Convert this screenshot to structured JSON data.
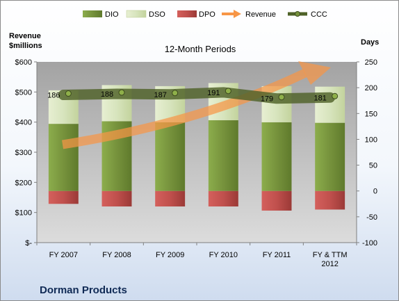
{
  "chart_data": {
    "type": "bar",
    "title": "12-Month Periods",
    "company": "Dorman Products",
    "ylabel_left_line1": "Revenue",
    "ylabel_left_line2": "$millions",
    "ylabel_right": "Days",
    "categories": [
      [
        "FY 2007"
      ],
      [
        "FY 2008"
      ],
      [
        "FY 2009"
      ],
      [
        "FY 2010"
      ],
      [
        "FY 2011"
      ],
      [
        "FY & TTM",
        "2012"
      ]
    ],
    "y_left": {
      "min": 0,
      "max": 600,
      "ticks": [
        "$-",
        "$100",
        "$200",
        "$300",
        "$400",
        "$500",
        "$600"
      ]
    },
    "y_right": {
      "min": -100,
      "max": 250,
      "ticks": [
        "-100",
        "-50",
        "0",
        "50",
        "100",
        "150",
        "200",
        "250"
      ]
    },
    "stacking": "DIO and DSO stack upward from 0 days; DPO stacks downward from 0 days",
    "series": [
      {
        "name": "DIO",
        "type": "bar",
        "axis": "right",
        "color": "#76923c",
        "values": [
          130,
          135,
          133,
          137,
          133,
          132
        ]
      },
      {
        "name": "DSO",
        "type": "bar",
        "axis": "right",
        "color": "#d7e4bd",
        "values": [
          65,
          70,
          70,
          72,
          70,
          70
        ]
      },
      {
        "name": "DPO",
        "type": "bar",
        "axis": "right",
        "color": "#c0504d",
        "values": [
          -25,
          -30,
          -30,
          -30,
          -38,
          -36
        ]
      },
      {
        "name": "Revenue",
        "type": "arrow",
        "axis": "left",
        "color": "#f79646"
      },
      {
        "name": "CCC",
        "type": "line",
        "axis": "right",
        "color": "#4f6228",
        "values": [
          186,
          188,
          187,
          191,
          179,
          181
        ],
        "labels": [
          "186",
          "188",
          "187",
          "191",
          "179",
          "181"
        ]
      }
    ]
  }
}
